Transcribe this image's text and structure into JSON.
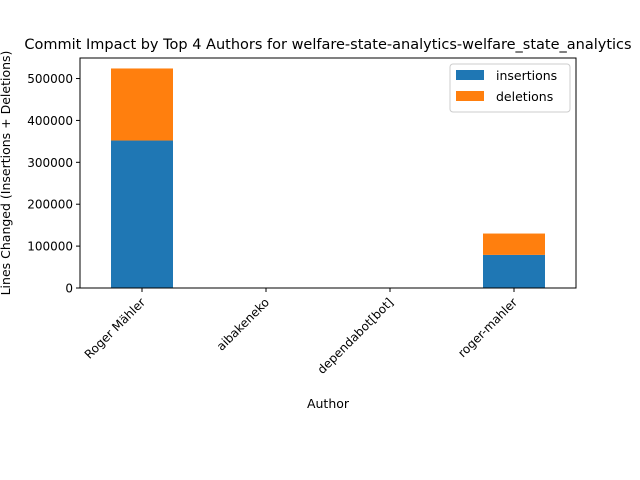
{
  "chart_data": {
    "type": "bar",
    "stacked": true,
    "title": "Commit Impact by Top 4 Authors for welfare-state-analytics-welfare_state_analytics",
    "xlabel": "Author",
    "ylabel": "Lines Changed (Insertions + Deletions)",
    "categories": [
      "Roger Mähler",
      "aibakeneko",
      "dependabot[bot]",
      "roger-mahler"
    ],
    "series": [
      {
        "name": "insertions",
        "color": "#1f77b4",
        "values": [
          352000,
          0,
          0,
          79000
        ]
      },
      {
        "name": "deletions",
        "color": "#ff7f0e",
        "values": [
          172000,
          0,
          0,
          51000
        ]
      }
    ],
    "yticks": [
      0,
      100000,
      200000,
      300000,
      400000,
      500000
    ],
    "ylim": [
      0,
      549000
    ],
    "legend": "top-right",
    "grid": false
  }
}
